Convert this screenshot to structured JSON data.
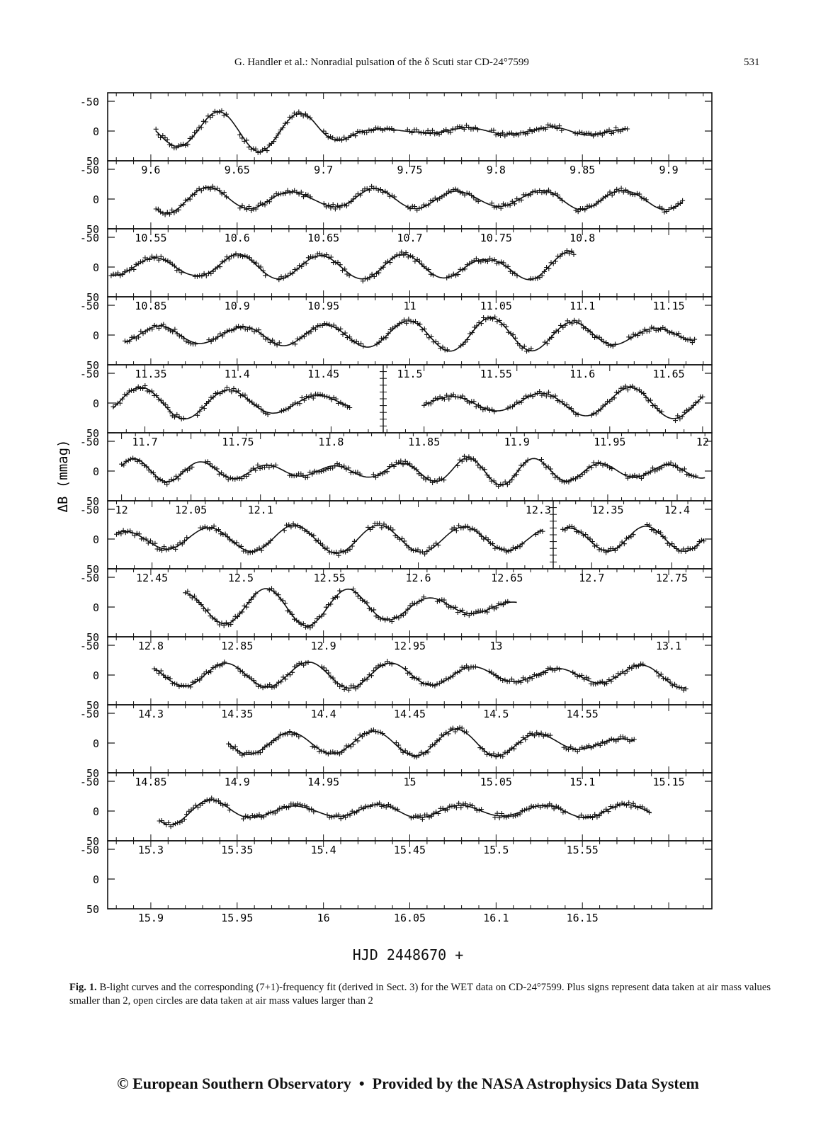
{
  "header": {
    "running_title": "G. Handler et al.: Nonradial pulsation of the δ Scuti star CD-24°7599",
    "page_number": "531"
  },
  "figure": {
    "xlabel": "HJD 2448670 +",
    "ylabel": "ΔB (mmag)",
    "caption_label": "Fig. 1.",
    "caption_text": "B-light curves and the corresponding (7+1)-frequency fit (derived in Sect. 3) for the WET data on CD-24°7599. Plus signs represent data taken at air mass values smaller than 2, open circles are data taken at air mass values larger than 2"
  },
  "chart_data": {
    "type": "line",
    "ylabel": "ΔB (mmag)",
    "xlabel": "HJD 2448670 +",
    "ylim": [
      50,
      -50
    ],
    "y_ticks": [
      "-50",
      "0",
      "50"
    ],
    "panels": [
      {
        "segments": [
          {
            "xlim": [
              9.575,
              9.925
            ],
            "ticks": [
              "9.6",
              "9.65",
              "9.7",
              "9.75",
              "9.8",
              "9.85",
              "9.9"
            ],
            "data_range": [
              9.603,
              9.876
            ],
            "amp": [
              22,
              32,
              35,
              28,
              4,
              2,
              6,
              5,
              8,
              4
            ]
          }
        ]
      },
      {
        "segments": [
          {
            "xlim": [
              10.525,
              10.875
            ],
            "ticks": [
              "10.55",
              "10.6",
              "10.65",
              "10.7",
              "10.75",
              "10.8"
            ],
            "data_range": [
              10.553,
              10.858
            ],
            "amp": [
              25,
              20,
              15,
              10,
              18,
              16,
              12,
              13,
              18,
              14,
              20
            ]
          }
        ]
      },
      {
        "segments": [
          {
            "xlim": [
              10.825,
              11.175
            ],
            "ticks": [
              "10.85",
              "10.9",
              "10.95",
              "11",
              "11.05",
              "11.1",
              "11.15"
            ],
            "data_range": [
              10.827,
              11.095
            ],
            "amp": [
              14,
              16,
              14,
              22,
              20,
              19,
              20,
              22,
              18,
              12,
              22,
              26
            ]
          }
        ]
      },
      {
        "segments": [
          {
            "xlim": [
              11.325,
              11.675
            ],
            "ticks": [
              "11.35",
              "11.4",
              "11.45",
              "11.5",
              "11.55",
              "11.6",
              "11.65"
            ],
            "data_range": [
              11.335,
              11.665
            ],
            "amp": [
              14,
              16,
              12,
              18,
              17,
              22,
              26,
              30,
              26,
              20,
              12,
              10
            ]
          }
        ]
      },
      {
        "segments": [
          {
            "xlim": [
              11.68,
              11.828
            ],
            "ticks": [
              "11.7",
              "11.75",
              "11.8"
            ],
            "data_range": [
              11.683,
              11.81
            ],
            "amp": [
              25,
              28,
              22,
              15,
              10
            ]
          },
          {
            "xlim": [
              11.828,
              12.005
            ],
            "ticks": [
              "11.85",
              "11.9",
              "11.95",
              "12"
            ],
            "data_range": [
              11.85,
              12.0
            ],
            "amp": [
              10,
              12,
              16,
              22,
              28,
              24
            ]
          }
        ]
      },
      {
        "segments": [
          {
            "xlim": [
              11.99,
              12.425
            ],
            "ticks": [
              "12",
              "12.05",
              "12.1",
              "12.3",
              "12.35",
              "12.4"
            ],
            "data_range": [
              12.0,
              12.42
            ],
            "amp": [
              22,
              18,
              14,
              10,
              8,
              10,
              14,
              22,
              24,
              18,
              12,
              10,
              12
            ]
          }
        ]
      },
      {
        "segments": [
          {
            "xlim": [
              12.425,
              12.676
            ],
            "ticks": [
              "12.45",
              "12.5",
              "12.55",
              "12.6",
              "12.65"
            ],
            "data_range": [
              12.43,
              12.67
            ],
            "amp": [
              12,
              18,
              20,
              24,
              24,
              22,
              20,
              18
            ]
          },
          {
            "xlim": [
              12.676,
              12.775
            ],
            "ticks": [
              "12.7",
              "12.75"
            ],
            "data_range": [
              12.682,
              12.77
            ],
            "amp": [
              18,
              22,
              20
            ]
          }
        ]
      },
      {
        "segments": [
          {
            "xlim": [
              12.775,
              13.125
            ],
            "ticks": [
              "12.8",
              "12.85",
              "12.9",
              "12.95",
              "13",
              "13.1"
            ],
            "data_range": [
              12.82,
              13.012
            ],
            "amp": [
              24,
              30,
              32,
              30,
              18,
              12,
              8
            ]
          }
        ]
      },
      {
        "segments": [
          {
            "xlim": [
              14.275,
              14.625
            ],
            "ticks": [
              "14.3",
              "14.35",
              "14.4",
              "14.45",
              "14.5",
              "14.55"
            ],
            "data_range": [
              14.302,
              14.61
            ],
            "amp": [
              18,
              20,
              20,
              22,
              22,
              18,
              14,
              10,
              12,
              16,
              22
            ]
          }
        ]
      },
      {
        "segments": [
          {
            "xlim": [
              14.825,
              15.175
            ],
            "ticks": [
              "14.85",
              "14.9",
              "14.95",
              "15",
              "15.05",
              "15.1",
              "15.15"
            ],
            "data_range": [
              14.895,
              15.13
            ],
            "amp": [
              20,
              18,
              18,
              20,
              22,
              24,
              16,
              10,
              6
            ]
          }
        ]
      },
      {
        "segments": [
          {
            "xlim": [
              15.275,
              15.625
            ],
            "ticks": [
              "15.3",
              "15.35",
              "15.4",
              "15.45",
              "15.5",
              "15.55"
            ],
            "data_range": [
              15.305,
              15.59
            ],
            "amp": [
              24,
              20,
              10,
              8,
              10,
              12,
              10,
              8,
              10,
              12,
              10
            ]
          }
        ]
      },
      {
        "segments": [
          {
            "xlim": [
              15.875,
              16.225
            ],
            "ticks": [
              "15.9",
              "15.95",
              "16",
              "16.05",
              "16.1",
              "16.15"
            ],
            "axis": "bottom"
          }
        ]
      }
    ]
  }
}
